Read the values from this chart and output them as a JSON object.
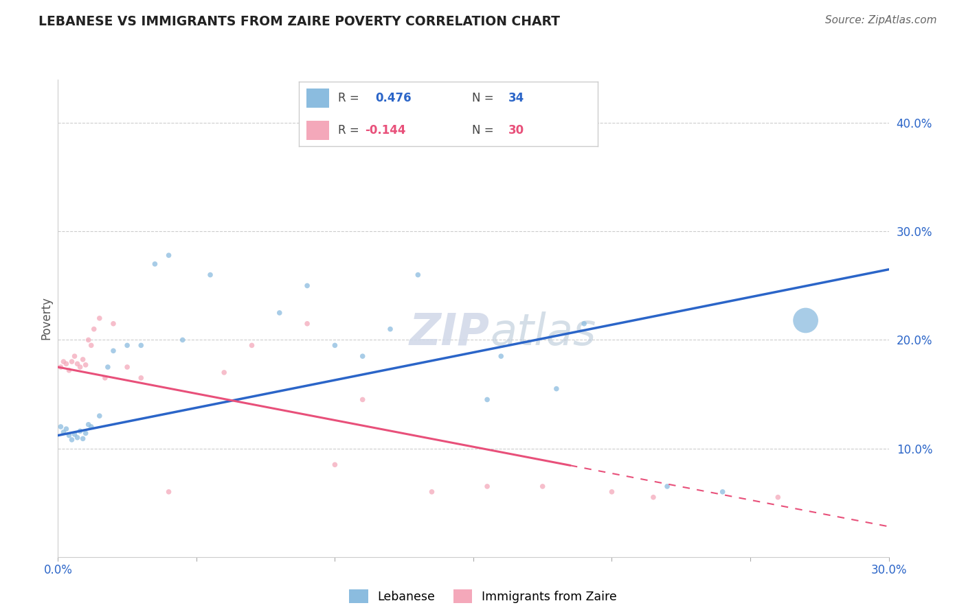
{
  "title": "LEBANESE VS IMMIGRANTS FROM ZAIRE POVERTY CORRELATION CHART",
  "source": "Source: ZipAtlas.com",
  "ylabel": "Poverty",
  "xlim": [
    0.0,
    0.3
  ],
  "ylim": [
    0.0,
    0.44
  ],
  "ytick_vals": [
    0.1,
    0.2,
    0.3,
    0.4
  ],
  "ytick_labels": [
    "10.0%",
    "20.0%",
    "30.0%",
    "40.0%"
  ],
  "group1_color": "#8BBCDF",
  "group2_color": "#F4A8BA",
  "line1_color": "#2B65C8",
  "line2_color": "#E8507A",
  "watermark": "ZIPatlas",
  "lebanese_x": [
    0.001,
    0.002,
    0.003,
    0.004,
    0.005,
    0.006,
    0.007,
    0.008,
    0.009,
    0.01,
    0.011,
    0.012,
    0.015,
    0.018,
    0.02,
    0.025,
    0.03,
    0.035,
    0.04,
    0.045,
    0.055,
    0.08,
    0.09,
    0.1,
    0.11,
    0.12,
    0.13,
    0.155,
    0.16,
    0.18,
    0.19,
    0.22,
    0.24,
    0.27
  ],
  "lebanese_y": [
    0.12,
    0.115,
    0.118,
    0.112,
    0.108,
    0.113,
    0.11,
    0.116,
    0.109,
    0.114,
    0.122,
    0.12,
    0.13,
    0.175,
    0.19,
    0.195,
    0.195,
    0.27,
    0.278,
    0.2,
    0.26,
    0.225,
    0.25,
    0.195,
    0.185,
    0.21,
    0.26,
    0.145,
    0.185,
    0.155,
    0.215,
    0.065,
    0.06,
    0.218
  ],
  "lebanese_sizes": [
    30,
    30,
    30,
    30,
    30,
    30,
    30,
    30,
    30,
    30,
    30,
    30,
    30,
    30,
    30,
    30,
    30,
    30,
    30,
    30,
    30,
    30,
    30,
    30,
    30,
    30,
    30,
    30,
    30,
    30,
    30,
    30,
    30,
    700
  ],
  "zaire_x": [
    0.001,
    0.002,
    0.003,
    0.004,
    0.005,
    0.006,
    0.007,
    0.008,
    0.009,
    0.01,
    0.011,
    0.012,
    0.013,
    0.015,
    0.017,
    0.02,
    0.025,
    0.03,
    0.04,
    0.06,
    0.07,
    0.09,
    0.1,
    0.11,
    0.135,
    0.155,
    0.175,
    0.2,
    0.215,
    0.26
  ],
  "zaire_y": [
    0.175,
    0.18,
    0.178,
    0.172,
    0.18,
    0.185,
    0.178,
    0.175,
    0.182,
    0.177,
    0.2,
    0.195,
    0.21,
    0.22,
    0.165,
    0.215,
    0.175,
    0.165,
    0.06,
    0.17,
    0.195,
    0.215,
    0.085,
    0.145,
    0.06,
    0.065,
    0.065,
    0.06,
    0.055,
    0.055
  ],
  "zaire_sizes": [
    30,
    30,
    30,
    30,
    30,
    30,
    30,
    30,
    30,
    30,
    30,
    30,
    30,
    30,
    30,
    30,
    30,
    30,
    30,
    30,
    30,
    30,
    30,
    30,
    30,
    30,
    30,
    30,
    30,
    30
  ],
  "line1_x": [
    0.0,
    0.3
  ],
  "line1_y": [
    0.112,
    0.265
  ],
  "line2_x": [
    0.0,
    0.3
  ],
  "line2_y": [
    0.175,
    0.028
  ]
}
